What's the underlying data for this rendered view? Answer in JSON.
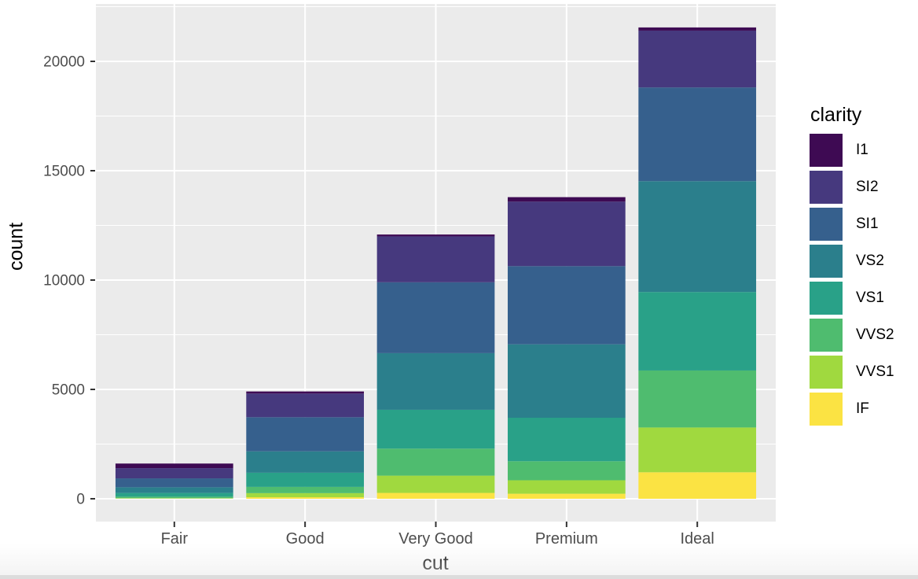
{
  "figure": {
    "background": "#ffffff",
    "panel_background": "#ebebeb",
    "grid_color": "#ffffff",
    "tick_mark_color": "#333333",
    "tick_label_color": "#4d4d4d",
    "title_color": "#000000",
    "bottom_strip_color": "#dcdcdc"
  },
  "chart_data": {
    "type": "bar",
    "stacked": true,
    "title": "",
    "xlabel": "cut",
    "ylabel": "count",
    "categories": [
      "Fair",
      "Good",
      "Very Good",
      "Premium",
      "Ideal"
    ],
    "totals": [
      1610,
      4906,
      12082,
      13791,
      21551
    ],
    "series": [
      {
        "name": "I1",
        "color": "#3e0a53",
        "values": [
          210,
          96,
          84,
          205,
          146
        ]
      },
      {
        "name": "SI2",
        "color": "#46397e",
        "values": [
          466,
          1081,
          2100,
          2949,
          2598
        ]
      },
      {
        "name": "SI1",
        "color": "#36608d",
        "values": [
          408,
          1560,
          3240,
          3575,
          4282
        ]
      },
      {
        "name": "VS2",
        "color": "#2b7f8c",
        "values": [
          261,
          978,
          2591,
          3357,
          5071
        ]
      },
      {
        "name": "VS1",
        "color": "#29a188",
        "values": [
          170,
          648,
          1775,
          1989,
          3589
        ]
      },
      {
        "name": "VVS2",
        "color": "#4fbc6f",
        "values": [
          69,
          286,
          1235,
          870,
          2606
        ]
      },
      {
        "name": "VVS1",
        "color": "#a0d93f",
        "values": [
          17,
          186,
          789,
          616,
          2047
        ]
      },
      {
        "name": "IF",
        "color": "#fbe343",
        "values": [
          9,
          71,
          268,
          230,
          1212
        ]
      }
    ],
    "stack_order_bottom_to_top": [
      "IF",
      "VVS1",
      "VVS2",
      "VS1",
      "VS2",
      "SI1",
      "SI2",
      "I1"
    ],
    "y_axis": {
      "ticks": [
        0,
        5000,
        10000,
        15000,
        20000
      ],
      "tick_labels": [
        "0",
        "5000",
        "10000",
        "15000",
        "20000"
      ],
      "minor_ticks": [
        2500,
        7500,
        12500,
        17500,
        22500
      ],
      "ylim": [
        0,
        21551
      ]
    },
    "legend": {
      "title": "clarity",
      "position": "right",
      "entries": [
        "I1",
        "SI2",
        "SI1",
        "VS2",
        "VS1",
        "VVS2",
        "VVS1",
        "IF"
      ]
    },
    "grid": true
  }
}
